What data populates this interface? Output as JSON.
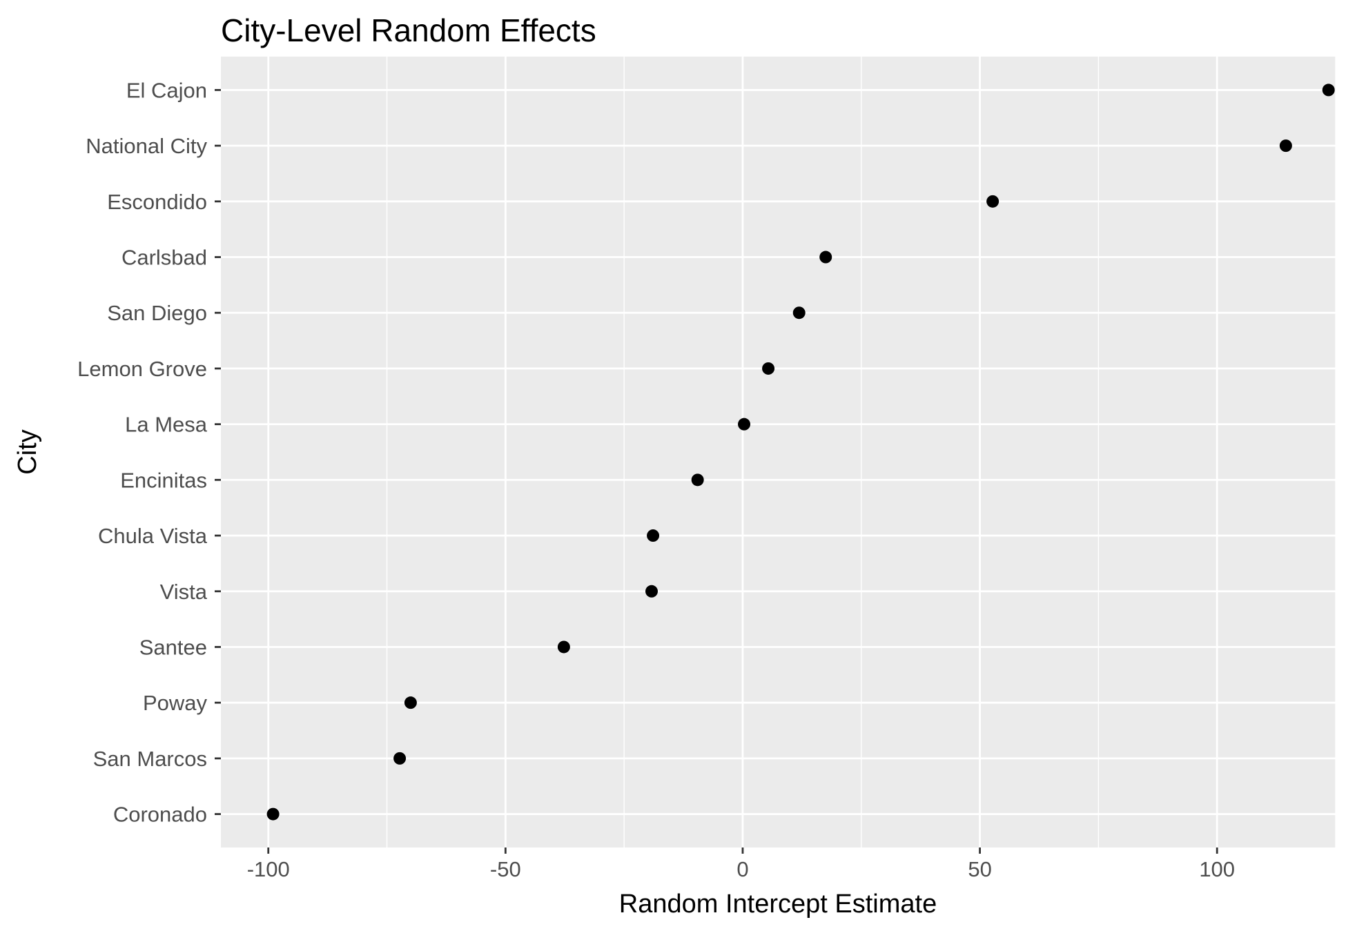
{
  "chart_data": {
    "type": "scatter",
    "title": "City-Level Random Effects",
    "xlabel": "Random Intercept Estimate",
    "ylabel": "City",
    "xlim": [
      -110,
      125
    ],
    "x_ticks": [
      -100,
      -50,
      0,
      50,
      100
    ],
    "x_tick_labels": [
      "-100",
      "-50",
      "0",
      "50",
      "100"
    ],
    "categories": [
      "El Cajon",
      "National City",
      "Escondido",
      "Carlsbad",
      "San Diego",
      "Lemon Grove",
      "La Mesa",
      "Encinitas",
      "Chula Vista",
      "Vista",
      "Santee",
      "Poway",
      "San Marcos",
      "Coronado"
    ],
    "values": [
      123.5,
      114.5,
      52.7,
      17.5,
      11.9,
      5.4,
      0.3,
      -9.5,
      -18.9,
      -19.2,
      -37.7,
      -70.0,
      -72.3,
      -99.0
    ],
    "grid": true,
    "panel_color": "#ebebeb",
    "grid_color": "#ffffff",
    "point_color": "#000000"
  }
}
